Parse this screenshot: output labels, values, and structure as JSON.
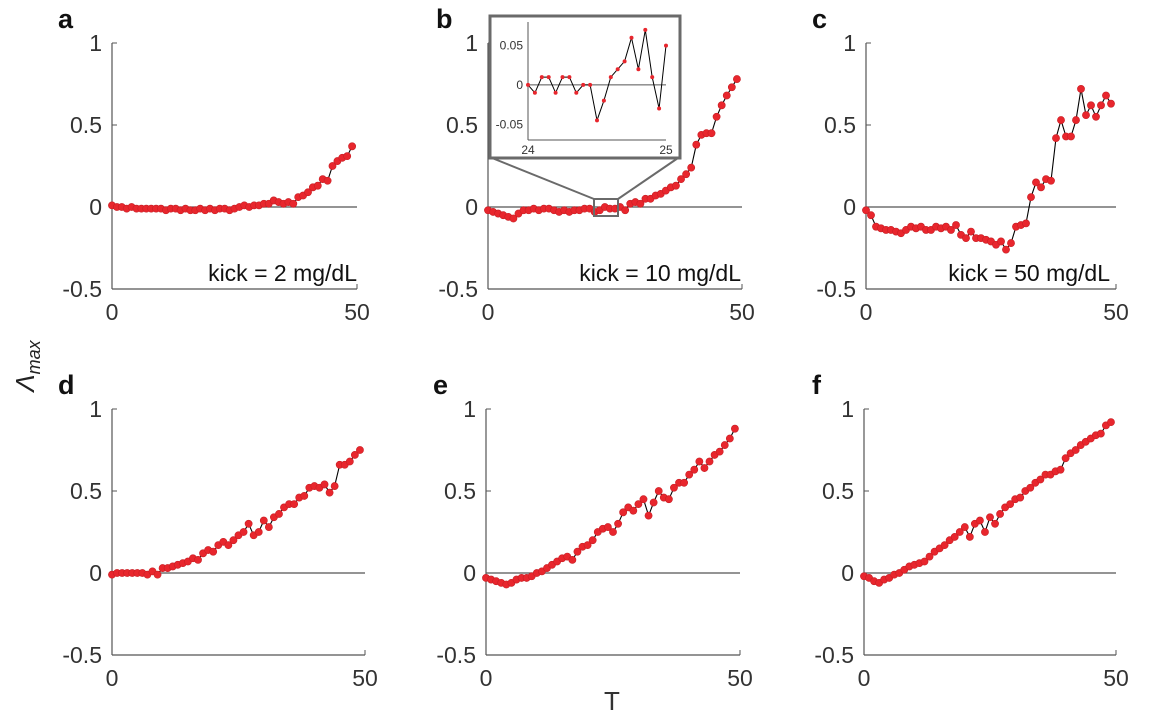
{
  "figure": {
    "ylabel": "Λ",
    "ylabel_sub": "max",
    "xlabel": "T"
  },
  "style": {
    "marker_color": "#e8262d",
    "line_color": "#000000",
    "axis_color": "#555555",
    "zero_line_color": "#555555"
  },
  "chart_data": [
    {
      "panel": "a",
      "type": "line",
      "annotation": "kick = 2 mg/dL",
      "xlim": [
        0,
        50
      ],
      "ylim": [
        -0.5,
        1
      ],
      "xticks": [
        "0",
        "50"
      ],
      "yticks": [
        "1",
        "0.5",
        "0",
        "-0.5"
      ],
      "x": [
        0,
        1,
        2,
        3,
        4,
        5,
        6,
        7,
        8,
        9,
        10,
        11,
        12,
        13,
        14,
        15,
        16,
        17,
        18,
        19,
        20,
        21,
        22,
        23,
        24,
        25,
        26,
        27,
        28,
        29,
        30,
        31,
        32,
        33,
        34,
        35,
        36,
        37,
        38,
        39,
        40,
        41,
        42,
        43,
        44,
        45,
        46,
        47,
        48,
        49
      ],
      "y": [
        0.01,
        0.0,
        0.0,
        -0.01,
        0.0,
        -0.01,
        -0.01,
        -0.01,
        -0.01,
        -0.01,
        -0.01,
        -0.02,
        -0.01,
        -0.01,
        -0.02,
        -0.01,
        -0.02,
        -0.02,
        -0.01,
        -0.02,
        -0.01,
        -0.02,
        -0.01,
        -0.01,
        -0.02,
        -0.01,
        0.0,
        0.01,
        0.0,
        0.01,
        0.01,
        0.02,
        0.02,
        0.04,
        0.03,
        0.02,
        0.03,
        0.02,
        0.06,
        0.07,
        0.09,
        0.12,
        0.13,
        0.17,
        0.16,
        0.25,
        0.28,
        0.3,
        0.31,
        0.37
      ]
    },
    {
      "panel": "b",
      "type": "line",
      "annotation": "kick = 10 mg/dL",
      "xlim": [
        0,
        50
      ],
      "ylim": [
        -0.5,
        1
      ],
      "xticks": [
        "0",
        "50"
      ],
      "yticks": [
        "1",
        "0.5",
        "0",
        "-0.5"
      ],
      "x": [
        0,
        1,
        2,
        3,
        4,
        5,
        6,
        7,
        8,
        9,
        10,
        11,
        12,
        13,
        14,
        15,
        16,
        17,
        18,
        19,
        20,
        21,
        22,
        23,
        24,
        25,
        26,
        27,
        28,
        29,
        30,
        31,
        32,
        33,
        34,
        35,
        36,
        37,
        38,
        39,
        40,
        41,
        42,
        43,
        44,
        45,
        46,
        47,
        48,
        49
      ],
      "y": [
        -0.02,
        -0.03,
        -0.04,
        -0.05,
        -0.06,
        -0.07,
        -0.04,
        -0.02,
        -0.02,
        -0.01,
        -0.02,
        -0.01,
        -0.01,
        -0.02,
        -0.03,
        -0.02,
        -0.03,
        -0.02,
        -0.02,
        -0.01,
        -0.01,
        -0.03,
        -0.02,
        0.0,
        -0.01,
        -0.01,
        0.0,
        -0.02,
        0.02,
        0.03,
        0.02,
        0.05,
        0.05,
        0.07,
        0.08,
        0.1,
        0.12,
        0.13,
        0.17,
        0.2,
        0.24,
        0.38,
        0.44,
        0.45,
        0.45,
        0.55,
        0.62,
        0.68,
        0.73,
        0.78
      ]
    },
    {
      "panel": "c",
      "type": "line",
      "annotation": "kick = 50 mg/dL",
      "xlim": [
        0,
        50
      ],
      "ylim": [
        -0.5,
        1
      ],
      "xticks": [
        "0",
        "50"
      ],
      "yticks": [
        "1",
        "0.5",
        "0",
        "-0.5"
      ],
      "x": [
        0,
        1,
        2,
        3,
        4,
        5,
        6,
        7,
        8,
        9,
        10,
        11,
        12,
        13,
        14,
        15,
        16,
        17,
        18,
        19,
        20,
        21,
        22,
        23,
        24,
        25,
        26,
        27,
        28,
        29,
        30,
        31,
        32,
        33,
        34,
        35,
        36,
        37,
        38,
        39,
        40,
        41,
        42,
        43,
        44,
        45,
        46,
        47,
        48,
        49
      ],
      "y": [
        -0.02,
        -0.05,
        -0.12,
        -0.13,
        -0.14,
        -0.14,
        -0.15,
        -0.16,
        -0.14,
        -0.12,
        -0.13,
        -0.12,
        -0.14,
        -0.14,
        -0.12,
        -0.13,
        -0.12,
        -0.14,
        -0.11,
        -0.17,
        -0.19,
        -0.15,
        -0.19,
        -0.19,
        -0.2,
        -0.21,
        -0.23,
        -0.21,
        -0.26,
        -0.22,
        -0.12,
        -0.11,
        -0.1,
        0.06,
        0.15,
        0.12,
        0.17,
        0.16,
        0.42,
        0.53,
        0.43,
        0.43,
        0.53,
        0.72,
        0.56,
        0.62,
        0.55,
        0.62,
        0.68,
        0.63
      ]
    },
    {
      "panel": "d",
      "type": "line",
      "annotation": "",
      "xlim": [
        0,
        50
      ],
      "ylim": [
        -0.5,
        1
      ],
      "xticks": [
        "0",
        "50"
      ],
      "yticks": [
        "1",
        "0.5",
        "0",
        "-0.5"
      ],
      "x": [
        0,
        1,
        2,
        3,
        4,
        5,
        6,
        7,
        8,
        9,
        10,
        11,
        12,
        13,
        14,
        15,
        16,
        17,
        18,
        19,
        20,
        21,
        22,
        23,
        24,
        25,
        26,
        27,
        28,
        29,
        30,
        31,
        32,
        33,
        34,
        35,
        36,
        37,
        38,
        39,
        40,
        41,
        42,
        43,
        44,
        45,
        46,
        47,
        48,
        49
      ],
      "y": [
        -0.01,
        0.0,
        0.0,
        0.0,
        0.0,
        0.0,
        0.0,
        -0.01,
        0.01,
        -0.01,
        0.03,
        0.03,
        0.04,
        0.05,
        0.06,
        0.07,
        0.09,
        0.08,
        0.12,
        0.14,
        0.13,
        0.17,
        0.19,
        0.17,
        0.2,
        0.23,
        0.25,
        0.3,
        0.23,
        0.25,
        0.32,
        0.28,
        0.34,
        0.36,
        0.4,
        0.42,
        0.42,
        0.46,
        0.47,
        0.52,
        0.53,
        0.52,
        0.54,
        0.49,
        0.53,
        0.66,
        0.66,
        0.68,
        0.72,
        0.75
      ]
    },
    {
      "panel": "e",
      "type": "line",
      "annotation": "",
      "xlim": [
        0,
        50
      ],
      "ylim": [
        -0.5,
        1
      ],
      "xticks": [
        "0",
        "50"
      ],
      "yticks": [
        "1",
        "0.5",
        "0",
        "-0.5"
      ],
      "x": [
        0,
        1,
        2,
        3,
        4,
        5,
        6,
        7,
        8,
        9,
        10,
        11,
        12,
        13,
        14,
        15,
        16,
        17,
        18,
        19,
        20,
        21,
        22,
        23,
        24,
        25,
        26,
        27,
        28,
        29,
        30,
        31,
        32,
        33,
        34,
        35,
        36,
        37,
        38,
        39,
        40,
        41,
        42,
        43,
        44,
        45,
        46,
        47,
        48,
        49
      ],
      "y": [
        -0.03,
        -0.04,
        -0.05,
        -0.06,
        -0.07,
        -0.06,
        -0.04,
        -0.03,
        -0.03,
        -0.02,
        0.0,
        0.01,
        0.03,
        0.05,
        0.07,
        0.09,
        0.1,
        0.08,
        0.13,
        0.16,
        0.17,
        0.2,
        0.25,
        0.27,
        0.28,
        0.25,
        0.3,
        0.37,
        0.4,
        0.38,
        0.42,
        0.45,
        0.35,
        0.43,
        0.5,
        0.46,
        0.45,
        0.52,
        0.55,
        0.55,
        0.6,
        0.63,
        0.68,
        0.64,
        0.68,
        0.72,
        0.74,
        0.78,
        0.82,
        0.88
      ]
    },
    {
      "panel": "f",
      "type": "line",
      "annotation": "",
      "xlim": [
        0,
        50
      ],
      "ylim": [
        -0.5,
        1
      ],
      "xticks": [
        "0",
        "50"
      ],
      "yticks": [
        "1",
        "0.5",
        "0",
        "-0.5"
      ],
      "x": [
        0,
        1,
        2,
        3,
        4,
        5,
        6,
        7,
        8,
        9,
        10,
        11,
        12,
        13,
        14,
        15,
        16,
        17,
        18,
        19,
        20,
        21,
        22,
        23,
        24,
        25,
        26,
        27,
        28,
        29,
        30,
        31,
        32,
        33,
        34,
        35,
        36,
        37,
        38,
        39,
        40,
        41,
        42,
        43,
        44,
        45,
        46,
        47,
        48,
        49
      ],
      "y": [
        -0.02,
        -0.03,
        -0.05,
        -0.06,
        -0.04,
        -0.03,
        -0.01,
        0.0,
        0.02,
        0.04,
        0.05,
        0.06,
        0.07,
        0.1,
        0.13,
        0.15,
        0.17,
        0.2,
        0.22,
        0.25,
        0.28,
        0.22,
        0.3,
        0.32,
        0.25,
        0.34,
        0.3,
        0.36,
        0.4,
        0.42,
        0.45,
        0.46,
        0.5,
        0.52,
        0.55,
        0.57,
        0.6,
        0.6,
        0.62,
        0.63,
        0.7,
        0.73,
        0.75,
        0.78,
        0.8,
        0.82,
        0.84,
        0.85,
        0.9,
        0.92
      ]
    },
    {
      "panel": "b-inset",
      "type": "line",
      "annotation": "",
      "xlim": [
        24,
        25
      ],
      "ylim": [
        -0.07,
        0.08
      ],
      "xticks": [
        "24",
        "25"
      ],
      "yticks": [
        "0.05",
        "0",
        "-0.05"
      ],
      "x": [
        24.0,
        24.05,
        24.1,
        24.15,
        24.2,
        24.25,
        24.3,
        24.35,
        24.4,
        24.45,
        24.5,
        24.55,
        24.6,
        24.65,
        24.7,
        24.75,
        24.8,
        24.85,
        24.9,
        24.95,
        25.0
      ],
      "y": [
        0.0,
        -0.01,
        0.01,
        0.01,
        -0.01,
        0.01,
        0.01,
        -0.01,
        0.0,
        0.0,
        -0.045,
        -0.02,
        0.01,
        0.02,
        0.03,
        0.06,
        0.02,
        0.07,
        0.01,
        -0.03,
        0.05
      ]
    }
  ]
}
